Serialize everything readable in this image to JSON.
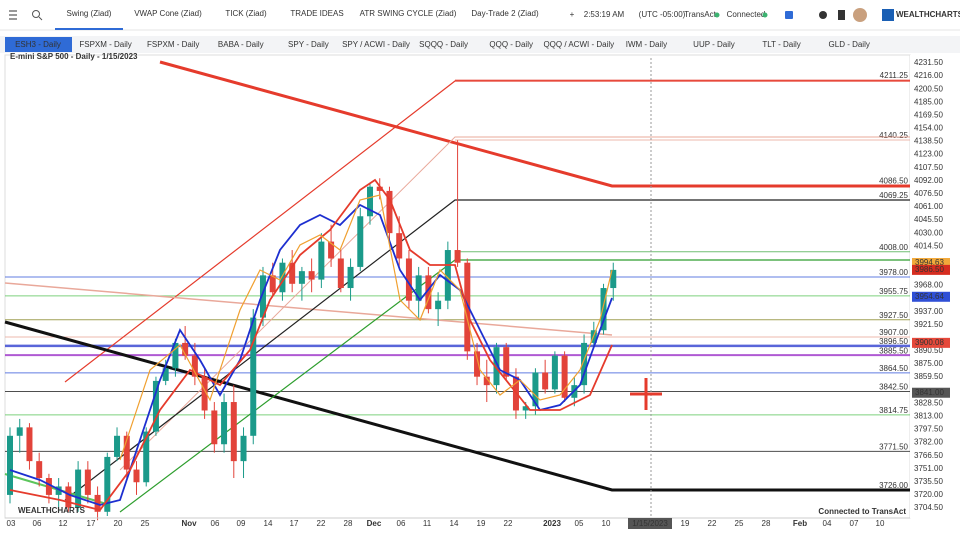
{
  "toolbar": {
    "tabs": [
      "Swing (Ziad)",
      "VWAP Cone (Ziad)",
      "TICK (Ziad)",
      "TRADE IDEAS",
      "ATR SWING CYCLE (Ziad)",
      "Day-Trade 2 (Ziad)"
    ],
    "time": "2:53:19 AM",
    "timezone": "(UTC -05:00)",
    "broker": "TransAct",
    "status": "Connected",
    "brand": "WEALTHCHARTS"
  },
  "watchlist": [
    "ESH3 - Daily",
    "FSPXM - Daily",
    "FSPXM - Daily",
    "BABA - Daily",
    "SPY - Daily",
    "SPY / ACWI - Daily",
    "SQQQ - Daily",
    "QQQ - Daily",
    "QQQ / ACWI - Daily",
    "IWM - Daily",
    "UUP - Daily",
    "TLT - Daily",
    "GLD - Daily"
  ],
  "chart": {
    "title": "E-mini S&P 500 - Daily - 1/15/2023",
    "up_color": "#1b9a8a",
    "down_color": "#e2433a",
    "candles": [
      [
        3720,
        3800,
        3710,
        3790
      ],
      [
        3790,
        3810,
        3770,
        3800
      ],
      [
        3800,
        3805,
        3750,
        3760
      ],
      [
        3760,
        3770,
        3730,
        3740
      ],
      [
        3740,
        3745,
        3710,
        3720
      ],
      [
        3720,
        3740,
        3700,
        3730
      ],
      [
        3730,
        3735,
        3700,
        3705
      ],
      [
        3705,
        3760,
        3700,
        3750
      ],
      [
        3750,
        3760,
        3710,
        3720
      ],
      [
        3720,
        3730,
        3690,
        3700
      ],
      [
        3700,
        3770,
        3695,
        3765
      ],
      [
        3765,
        3800,
        3760,
        3790
      ],
      [
        3790,
        3795,
        3740,
        3750
      ],
      [
        3750,
        3760,
        3720,
        3735
      ],
      [
        3735,
        3800,
        3730,
        3795
      ],
      [
        3795,
        3860,
        3790,
        3855
      ],
      [
        3855,
        3880,
        3850,
        3870
      ],
      [
        3870,
        3905,
        3860,
        3900
      ],
      [
        3900,
        3920,
        3880,
        3885
      ],
      [
        3885,
        3900,
        3850,
        3860
      ],
      [
        3860,
        3870,
        3810,
        3820
      ],
      [
        3820,
        3830,
        3770,
        3780
      ],
      [
        3780,
        3840,
        3770,
        3830
      ],
      [
        3830,
        3850,
        3740,
        3760
      ],
      [
        3760,
        3800,
        3740,
        3790
      ],
      [
        3790,
        3940,
        3780,
        3930
      ],
      [
        3930,
        3990,
        3920,
        3980
      ],
      [
        3980,
        3995,
        3955,
        3960
      ],
      [
        3960,
        4000,
        3950,
        3995
      ],
      [
        3995,
        4010,
        3960,
        3970
      ],
      [
        3970,
        3990,
        3950,
        3985
      ],
      [
        3985,
        4000,
        3960,
        3975
      ],
      [
        3975,
        4030,
        3965,
        4020
      ],
      [
        4020,
        4040,
        3990,
        4000
      ],
      [
        4000,
        4010,
        3960,
        3965
      ],
      [
        3965,
        4000,
        3950,
        3990
      ],
      [
        3990,
        4060,
        3985,
        4050
      ],
      [
        4050,
        4090,
        4040,
        4085
      ],
      [
        4085,
        4095,
        4070,
        4080
      ],
      [
        4080,
        4085,
        4020,
        4030
      ],
      [
        4030,
        4050,
        3990,
        4000
      ],
      [
        4000,
        4010,
        3940,
        3950
      ],
      [
        3950,
        3990,
        3930,
        3980
      ],
      [
        3980,
        3990,
        3935,
        3940
      ],
      [
        3940,
        3960,
        3920,
        3950
      ],
      [
        3950,
        4020,
        3940,
        4010
      ],
      [
        4010,
        4140,
        3990,
        3995
      ],
      [
        3995,
        4000,
        3880,
        3890
      ],
      [
        3890,
        3900,
        3850,
        3860
      ],
      [
        3860,
        3880,
        3830,
        3850
      ],
      [
        3850,
        3900,
        3840,
        3895
      ],
      [
        3895,
        3900,
        3855,
        3860
      ],
      [
        3860,
        3870,
        3810,
        3820
      ],
      [
        3820,
        3830,
        3810,
        3825
      ],
      [
        3825,
        3870,
        3815,
        3865
      ],
      [
        3865,
        3880,
        3840,
        3845
      ],
      [
        3845,
        3890,
        3840,
        3885
      ],
      [
        3885,
        3890,
        3830,
        3835
      ],
      [
        3835,
        3860,
        3825,
        3850
      ],
      [
        3850,
        3910,
        3840,
        3900
      ],
      [
        3900,
        3925,
        3895,
        3915
      ],
      [
        3915,
        3970,
        3910,
        3965
      ],
      [
        3965,
        3995,
        3950,
        3986.5
      ]
    ],
    "levels": [
      {
        "label": "4211.25",
        "color": "#e53b2c"
      },
      {
        "label": "4140.25",
        "color": "#e9a89a"
      },
      {
        "label": "4086.50",
        "color": "#e53b2c"
      },
      {
        "label": "4069.25",
        "color": "#222222"
      },
      {
        "label": "4008.00",
        "color": "#4caf50"
      },
      {
        "label": "3978.00",
        "color": "#3b5bdb"
      },
      {
        "label": "3955.75",
        "color": "#5cc55c"
      },
      {
        "label": "3927.50",
        "color": "#8a8a2a"
      },
      {
        "label": "3907.00",
        "color": "#e9a89a"
      },
      {
        "label": "3896.50",
        "color": "#2f3fd0"
      },
      {
        "label": "3885.50",
        "color": "#9b30c8"
      },
      {
        "label": "3864.50",
        "color": "#3b5bdb"
      },
      {
        "label": "3842.50",
        "color": "#222222"
      },
      {
        "label": "3814.75",
        "color": "#5cc55c"
      },
      {
        "label": "3771.50",
        "color": "#222222"
      },
      {
        "label": "3726.00",
        "color": "#222222"
      }
    ],
    "price_tags": [
      {
        "label": "3994.63",
        "color": "#f2a93b"
      },
      {
        "label": "3986.50",
        "color": "#d62d20"
      },
      {
        "label": "3954.64",
        "color": "#2f4fd6"
      },
      {
        "label": "3900.08",
        "color": "#e5483a"
      },
      {
        "label": "3841.00",
        "color": "#555555"
      }
    ],
    "footer": "Connected to TransAct",
    "watermark": "WEALTHCHARTS"
  },
  "price_axis": {
    "labels": [
      "4231.50",
      "4216.00",
      "4200.50",
      "4185.00",
      "4169.50",
      "4154.00",
      "4138.50",
      "4123.00",
      "4107.50",
      "4092.00",
      "4076.50",
      "4061.00",
      "4045.50",
      "4030.00",
      "4014.50",
      "3968.00",
      "3937.00",
      "3921.50",
      "3890.50",
      "3875.00",
      "3859.50",
      "3828.50",
      "3813.00",
      "3797.50",
      "3782.00",
      "3766.50",
      "3751.00",
      "3735.50",
      "3720.00",
      "3704.50"
    ]
  },
  "time_axis": {
    "labels": [
      "03",
      "06",
      "12",
      "17",
      "20",
      "25",
      "Nov",
      "06",
      "09",
      "14",
      "17",
      "22",
      "28",
      "Dec",
      "06",
      "11",
      "14",
      "19",
      "22",
      "2023",
      "05",
      "10",
      "1/15/2023",
      "19",
      "22",
      "25",
      "28",
      "Feb",
      "04",
      "07",
      "10"
    ]
  }
}
